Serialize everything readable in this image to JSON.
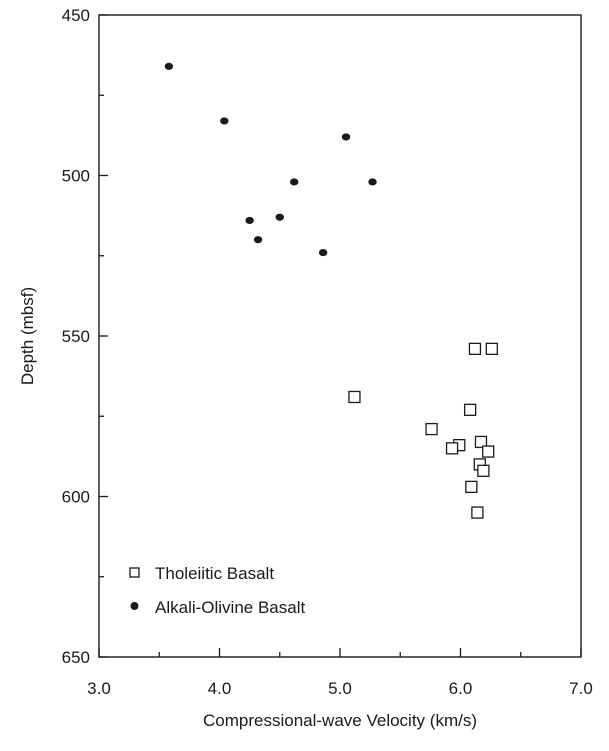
{
  "chart_data": {
    "type": "scatter",
    "title": "",
    "xlabel": "Compressional-wave Velocity (km/s)",
    "ylabel": "Depth (mbsf)",
    "xlim": [
      3.0,
      7.0
    ],
    "ylim": [
      650,
      450
    ],
    "y_axis_inverted": true,
    "x_ticks": [
      "3.0",
      "4.0",
      "5.0",
      "6.0",
      "7.0"
    ],
    "y_ticks": [
      "450",
      "500",
      "550",
      "600",
      "650"
    ],
    "grid": false,
    "legend_position": "bottom-left",
    "series": [
      {
        "name": "Tholeiitic Basalt",
        "marker": "open-square",
        "color": "#1a1a1a",
        "points": [
          {
            "x": 6.12,
            "y": 554
          },
          {
            "x": 6.26,
            "y": 554
          },
          {
            "x": 5.12,
            "y": 569
          },
          {
            "x": 6.08,
            "y": 573
          },
          {
            "x": 5.76,
            "y": 579
          },
          {
            "x": 6.17,
            "y": 583
          },
          {
            "x": 5.99,
            "y": 584
          },
          {
            "x": 5.93,
            "y": 585
          },
          {
            "x": 6.23,
            "y": 586
          },
          {
            "x": 6.16,
            "y": 590
          },
          {
            "x": 6.19,
            "y": 592
          },
          {
            "x": 6.09,
            "y": 597
          },
          {
            "x": 6.14,
            "y": 605
          }
        ]
      },
      {
        "name": "Alkali-Olivine Basalt",
        "marker": "filled-circle",
        "color": "#1a1a1a",
        "points": [
          {
            "x": 3.58,
            "y": 466
          },
          {
            "x": 4.04,
            "y": 483
          },
          {
            "x": 5.05,
            "y": 488
          },
          {
            "x": 4.62,
            "y": 502
          },
          {
            "x": 5.27,
            "y": 502
          },
          {
            "x": 4.25,
            "y": 514
          },
          {
            "x": 4.5,
            "y": 513
          },
          {
            "x": 4.32,
            "y": 520
          },
          {
            "x": 4.86,
            "y": 524
          }
        ]
      }
    ]
  }
}
